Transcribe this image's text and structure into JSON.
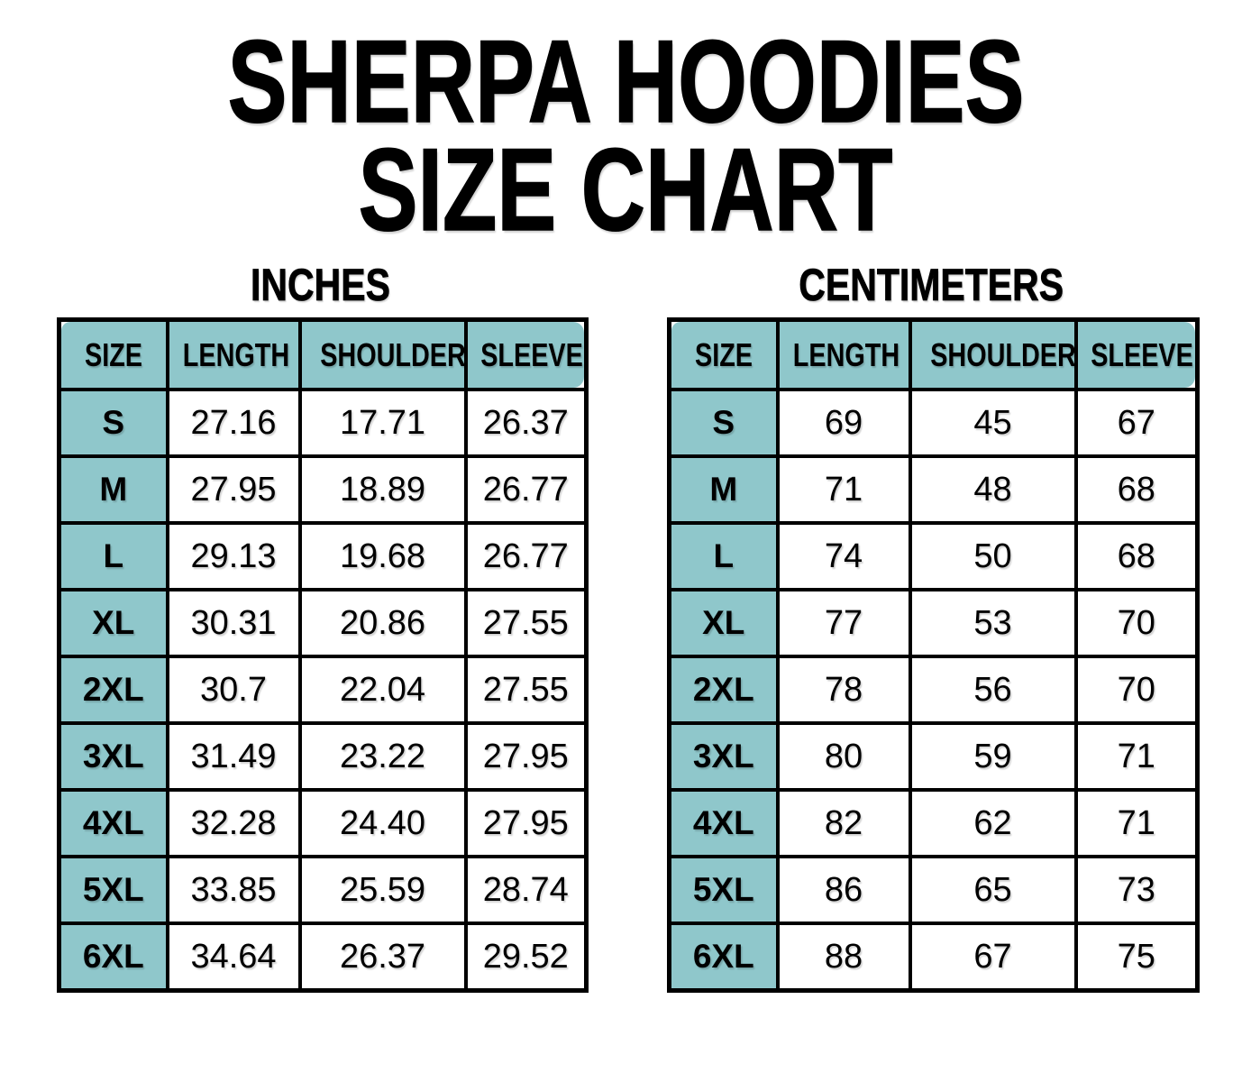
{
  "title": {
    "line1": "SHERPA HOODIES",
    "line2": "SIZE CHART"
  },
  "colors": {
    "header_fill": "#8FC7CB",
    "border": "#000000",
    "text": "#000000",
    "background": "#FFFFFF"
  },
  "chart_data": [
    {
      "type": "table",
      "title": "INCHES",
      "columns": [
        "SIZE",
        "LENGTH",
        "SHOULDER",
        "SLEEVE"
      ],
      "rows": [
        [
          "S",
          "27.16",
          "17.71",
          "26.37"
        ],
        [
          "M",
          "27.95",
          "18.89",
          "26.77"
        ],
        [
          "L",
          "29.13",
          "19.68",
          "26.77"
        ],
        [
          "XL",
          "30.31",
          "20.86",
          "27.55"
        ],
        [
          "2XL",
          "30.7",
          "22.04",
          "27.55"
        ],
        [
          "3XL",
          "31.49",
          "23.22",
          "27.95"
        ],
        [
          "4XL",
          "32.28",
          "24.40",
          "27.95"
        ],
        [
          "5XL",
          "33.85",
          "25.59",
          "28.74"
        ],
        [
          "6XL",
          "34.64",
          "26.37",
          "29.52"
        ]
      ]
    },
    {
      "type": "table",
      "title": "CENTIMETERS",
      "columns": [
        "SIZE",
        "LENGTH",
        "SHOULDER",
        "SLEEVE"
      ],
      "rows": [
        [
          "S",
          "69",
          "45",
          "67"
        ],
        [
          "M",
          "71",
          "48",
          "68"
        ],
        [
          "L",
          "74",
          "50",
          "68"
        ],
        [
          "XL",
          "77",
          "53",
          "70"
        ],
        [
          "2XL",
          "78",
          "56",
          "70"
        ],
        [
          "3XL",
          "80",
          "59",
          "71"
        ],
        [
          "4XL",
          "82",
          "62",
          "71"
        ],
        [
          "5XL",
          "86",
          "65",
          "73"
        ],
        [
          "6XL",
          "88",
          "67",
          "75"
        ]
      ]
    }
  ]
}
